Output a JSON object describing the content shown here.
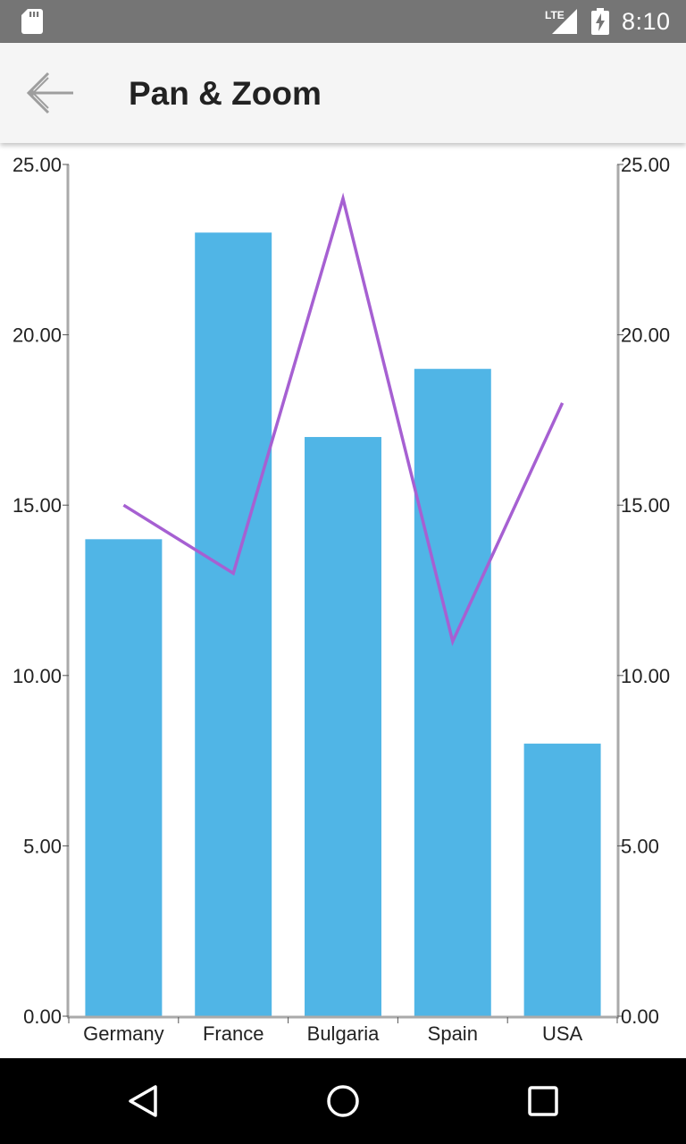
{
  "status_bar": {
    "time": "8:10",
    "network": "LTE",
    "icons": [
      "sd-card-icon",
      "signal-icon",
      "battery-charging-icon"
    ]
  },
  "app_bar": {
    "title": "Pan & Zoom",
    "back_icon": "arrow-back-icon"
  },
  "nav_bar": {
    "icons": [
      "back-triangle-icon",
      "home-circle-icon",
      "recents-square-icon"
    ]
  },
  "colors": {
    "bar": "#50b5e6",
    "line": "#a660d2",
    "axis": "#aaaaaa",
    "status_bar": "#757575",
    "app_bar": "#f5f5f5"
  },
  "chart_data": {
    "type": "bar",
    "categories": [
      "Germany",
      "France",
      "Bulgaria",
      "Spain",
      "USA"
    ],
    "series": [
      {
        "type": "bar",
        "values": [
          14,
          23,
          17,
          19,
          8
        ]
      },
      {
        "type": "line",
        "values": [
          15,
          13,
          24,
          11,
          18
        ]
      }
    ],
    "ylim": [
      0,
      25
    ],
    "yticks": [
      "0.00",
      "5.00",
      "10.00",
      "15.00",
      "20.00",
      "25.00"
    ],
    "secondary_yticks": [
      "0.00",
      "5.00",
      "10.00",
      "15.00",
      "20.00",
      "25.00"
    ],
    "grid": false
  }
}
